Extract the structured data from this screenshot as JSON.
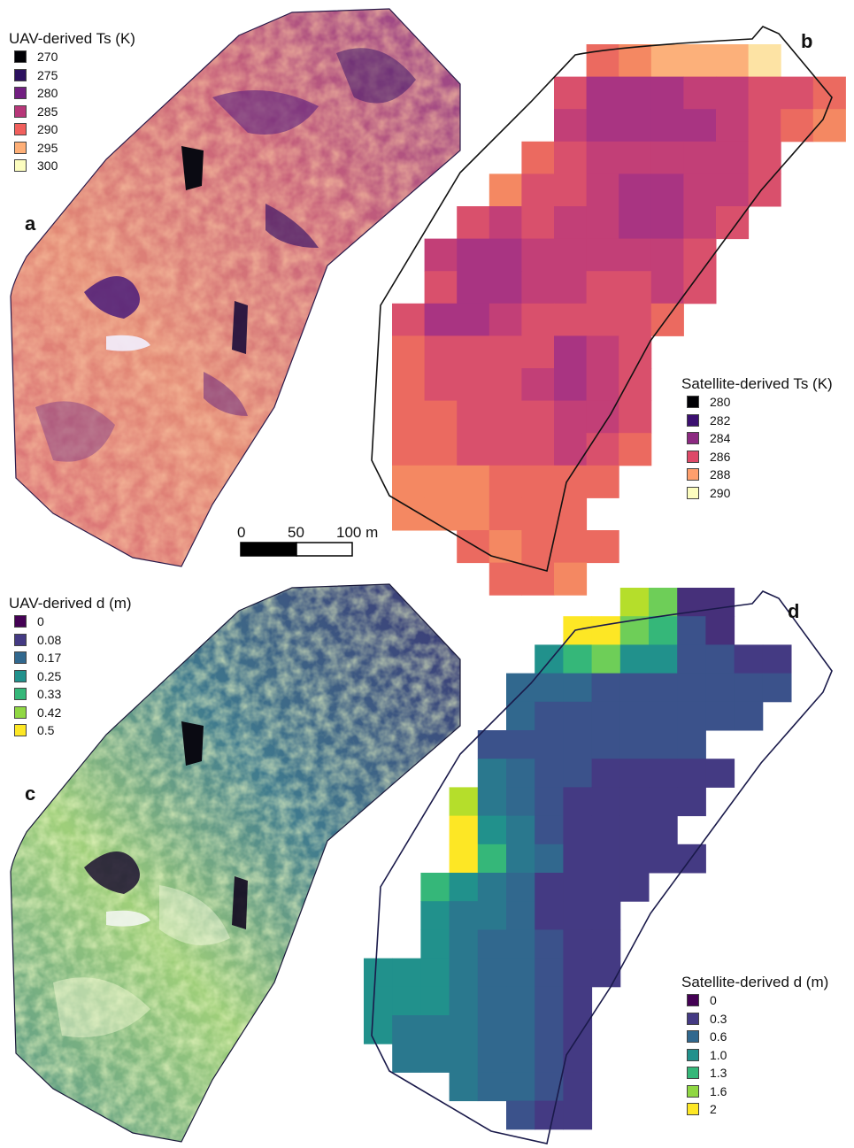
{
  "panels": {
    "a": {
      "label": "a"
    },
    "b": {
      "label": "b"
    },
    "c": {
      "label": "c"
    },
    "d": {
      "label": "d"
    }
  },
  "legends": {
    "uav_ts": {
      "title": "UAV-derived Ts (K)",
      "items": [
        {
          "label": "270",
          "color": "#000004"
        },
        {
          "label": "275",
          "color": "#2c115f"
        },
        {
          "label": "280",
          "color": "#721f81"
        },
        {
          "label": "285",
          "color": "#b73779"
        },
        {
          "label": "290",
          "color": "#f1605d"
        },
        {
          "label": "295",
          "color": "#feaf77"
        },
        {
          "label": "300",
          "color": "#fcfdbf"
        }
      ]
    },
    "sat_ts": {
      "title": "Satellite-derived Ts (K)",
      "items": [
        {
          "label": "280",
          "color": "#000004"
        },
        {
          "label": "282",
          "color": "#3b0f70"
        },
        {
          "label": "284",
          "color": "#8c2981"
        },
        {
          "label": "286",
          "color": "#de4968"
        },
        {
          "label": "288",
          "color": "#fe9f6d"
        },
        {
          "label": "290",
          "color": "#fcfdbf"
        }
      ]
    },
    "uav_d": {
      "title": "UAV-derived d (m)",
      "items": [
        {
          "label": "0",
          "color": "#440154"
        },
        {
          "label": "0.08",
          "color": "#443a83"
        },
        {
          "label": "0.17",
          "color": "#31688e"
        },
        {
          "label": "0.25",
          "color": "#21918c"
        },
        {
          "label": "0.33",
          "color": "#35b779"
        },
        {
          "label": "0.42",
          "color": "#90d743"
        },
        {
          "label": "0.5",
          "color": "#fde725"
        }
      ]
    },
    "sat_d": {
      "title": "Satellite-derived d (m)",
      "items": [
        {
          "label": "0",
          "color": "#440154"
        },
        {
          "label": "0.3",
          "color": "#443a83"
        },
        {
          "label": "0.6",
          "color": "#31688e"
        },
        {
          "label": "1.0",
          "color": "#21918c"
        },
        {
          "label": "1.3",
          "color": "#35b779"
        },
        {
          "label": "1.6",
          "color": "#90d743"
        },
        {
          "label": "2",
          "color": "#fde725"
        }
      ]
    }
  },
  "scale_bar": {
    "ticks": [
      "0",
      "50",
      "100 m"
    ]
  }
}
